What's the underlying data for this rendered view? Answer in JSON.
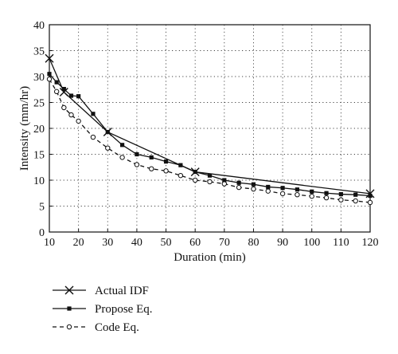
{
  "chart_data": {
    "type": "line",
    "title": "",
    "xlabel": "Duration (min)",
    "ylabel": "Intensity (mm/hr)",
    "xlim": [
      10,
      120
    ],
    "ylim": [
      0,
      40
    ],
    "xticks": [
      "10",
      "20",
      "30",
      "40",
      "50",
      "60",
      "70",
      "80",
      "90",
      "100",
      "110",
      "120"
    ],
    "yticks": [
      "0",
      "5",
      "10",
      "15",
      "20",
      "25",
      "30",
      "35",
      "40"
    ],
    "grid": true,
    "legend_position": "bottom-left",
    "series": [
      {
        "name": "Actual IDF",
        "marker": "x",
        "line_style": "solid",
        "x": [
          10,
          15,
          30,
          60,
          120
        ],
        "y": [
          33.5,
          27.0,
          19.3,
          11.6,
          7.4
        ]
      },
      {
        "name": "Propose Eq.",
        "marker": "filled-square",
        "line_style": "solid",
        "x": [
          10,
          12.5,
          15,
          17.5,
          20,
          25,
          30,
          35,
          40,
          45,
          50,
          55,
          60,
          65,
          70,
          75,
          80,
          85,
          90,
          95,
          100,
          105,
          110,
          115,
          120
        ],
        "y": [
          30.5,
          28.9,
          27.6,
          26.3,
          26.2,
          22.8,
          19.3,
          16.8,
          15.0,
          14.4,
          13.6,
          12.9,
          11.6,
          10.9,
          10.0,
          9.5,
          9.2,
          8.7,
          8.5,
          8.2,
          7.8,
          7.5,
          7.3,
          7.2,
          7.0
        ]
      },
      {
        "name": "Code Eq.",
        "marker": "open-circle",
        "line_style": "dashed",
        "x": [
          10,
          12.5,
          15,
          17.5,
          20,
          25,
          30,
          35,
          40,
          45,
          50,
          55,
          60,
          65,
          70,
          75,
          80,
          85,
          90,
          95,
          100,
          105,
          110,
          115,
          120
        ],
        "y": [
          29.5,
          27.1,
          24.0,
          22.6,
          21.4,
          18.3,
          16.2,
          14.4,
          13.0,
          12.2,
          11.8,
          10.9,
          10.0,
          9.7,
          9.3,
          8.6,
          8.3,
          7.9,
          7.4,
          7.2,
          6.9,
          6.6,
          6.2,
          6.0,
          5.7
        ]
      }
    ]
  }
}
